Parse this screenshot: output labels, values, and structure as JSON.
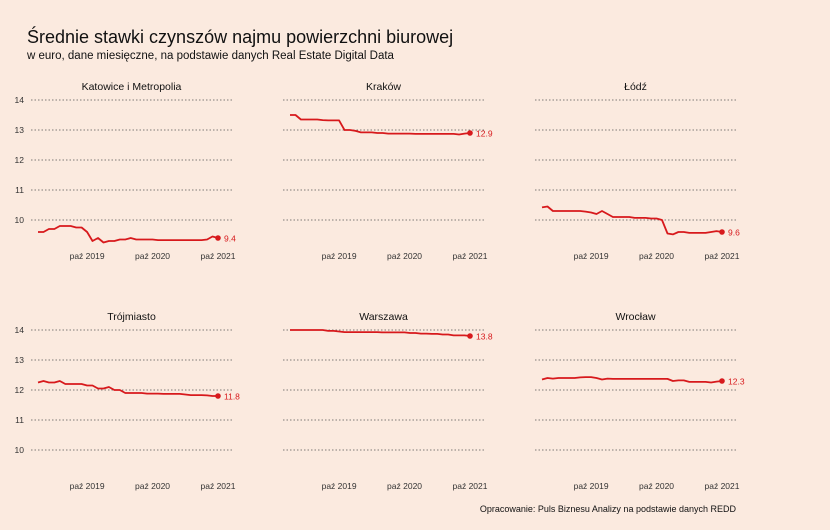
{
  "title": "Średnie stawki czynszów najmu powierzchni biurowej",
  "subtitle": "w euro, dane miesięczne, na podstawie danych Real Estate Digital Data",
  "caption": "Opracowanie: Puls Biznesu Analizy na podstawie danych REDD",
  "colors": {
    "line": "#d7191c",
    "background": "#fbeadf",
    "grid": "#555555",
    "text": "#333333"
  },
  "chart_data": [
    {
      "type": "line",
      "title": "Katowice i Metropolia",
      "x": [
        "2019-01",
        "2019-02",
        "2019-03",
        "2019-04",
        "2019-05",
        "2019-06",
        "2019-07",
        "2019-08",
        "2019-09",
        "2019-10",
        "2019-11",
        "2019-12",
        "2020-01",
        "2020-02",
        "2020-03",
        "2020-04",
        "2020-05",
        "2020-06",
        "2020-07",
        "2020-08",
        "2020-09",
        "2020-10",
        "2020-11",
        "2020-12",
        "2021-01",
        "2021-02",
        "2021-03",
        "2021-04",
        "2021-05",
        "2021-06",
        "2021-07",
        "2021-08",
        "2021-09",
        "2021-10"
      ],
      "values": [
        9.6,
        9.6,
        9.7,
        9.7,
        9.8,
        9.8,
        9.8,
        9.75,
        9.75,
        9.6,
        9.3,
        9.4,
        9.25,
        9.3,
        9.3,
        9.35,
        9.35,
        9.4,
        9.35,
        9.35,
        9.35,
        9.35,
        9.33,
        9.33,
        9.33,
        9.33,
        9.33,
        9.33,
        9.33,
        9.33,
        9.33,
        9.35,
        9.45,
        9.4
      ],
      "last_label": "9.4",
      "ylim": [
        9.2,
        14
      ],
      "yticks": [
        10,
        11,
        12,
        13,
        14
      ],
      "xticks": [
        "paź 2019",
        "paź 2020",
        "paź 2021"
      ],
      "grid": true
    },
    {
      "type": "line",
      "title": "Kraków",
      "x": [
        "2019-01",
        "2019-02",
        "2019-03",
        "2019-04",
        "2019-05",
        "2019-06",
        "2019-07",
        "2019-08",
        "2019-09",
        "2019-10",
        "2019-11",
        "2019-12",
        "2020-01",
        "2020-02",
        "2020-03",
        "2020-04",
        "2020-05",
        "2020-06",
        "2020-07",
        "2020-08",
        "2020-09",
        "2020-10",
        "2020-11",
        "2020-12",
        "2021-01",
        "2021-02",
        "2021-03",
        "2021-04",
        "2021-05",
        "2021-06",
        "2021-07",
        "2021-08",
        "2021-09",
        "2021-10"
      ],
      "values": [
        13.5,
        13.5,
        13.35,
        13.35,
        13.35,
        13.35,
        13.33,
        13.32,
        13.32,
        13.32,
        13.0,
        13.0,
        12.97,
        12.92,
        12.92,
        12.92,
        12.9,
        12.9,
        12.88,
        12.88,
        12.88,
        12.88,
        12.88,
        12.87,
        12.87,
        12.87,
        12.87,
        12.87,
        12.87,
        12.87,
        12.87,
        12.85,
        12.88,
        12.9
      ],
      "last_label": "12.9",
      "ylim": [
        9.2,
        14
      ],
      "yticks": [
        10,
        11,
        12,
        13,
        14
      ],
      "xticks": [
        "paź 2019",
        "paź 2020",
        "paź 2021"
      ],
      "grid": true
    },
    {
      "type": "line",
      "title": "Łódź",
      "x": [
        "2019-01",
        "2019-02",
        "2019-03",
        "2019-04",
        "2019-05",
        "2019-06",
        "2019-07",
        "2019-08",
        "2019-09",
        "2019-10",
        "2019-11",
        "2019-12",
        "2020-01",
        "2020-02",
        "2020-03",
        "2020-04",
        "2020-05",
        "2020-06",
        "2020-07",
        "2020-08",
        "2020-09",
        "2020-10",
        "2020-11",
        "2020-12",
        "2021-01",
        "2021-02",
        "2021-03",
        "2021-04",
        "2021-05",
        "2021-06",
        "2021-07",
        "2021-08",
        "2021-09",
        "2021-10"
      ],
      "values": [
        10.42,
        10.45,
        10.3,
        10.3,
        10.3,
        10.3,
        10.3,
        10.3,
        10.28,
        10.25,
        10.2,
        10.3,
        10.2,
        10.1,
        10.1,
        10.1,
        10.1,
        10.07,
        10.07,
        10.07,
        10.05,
        10.05,
        10.0,
        9.55,
        9.52,
        9.6,
        9.6,
        9.57,
        9.57,
        9.57,
        9.57,
        9.6,
        9.63,
        9.6
      ],
      "last_label": "9.6",
      "ylim": [
        9.2,
        14
      ],
      "yticks": [
        10,
        11,
        12,
        13,
        14
      ],
      "xticks": [
        "paź 2019",
        "paź 2020",
        "paź 2021"
      ],
      "grid": true
    },
    {
      "type": "line",
      "title": "Trójmiasto",
      "x": [
        "2019-01",
        "2019-02",
        "2019-03",
        "2019-04",
        "2019-05",
        "2019-06",
        "2019-07",
        "2019-08",
        "2019-09",
        "2019-10",
        "2019-11",
        "2019-12",
        "2020-01",
        "2020-02",
        "2020-03",
        "2020-04",
        "2020-05",
        "2020-06",
        "2020-07",
        "2020-08",
        "2020-09",
        "2020-10",
        "2020-11",
        "2020-12",
        "2021-01",
        "2021-02",
        "2021-03",
        "2021-04",
        "2021-05",
        "2021-06",
        "2021-07",
        "2021-08",
        "2021-09",
        "2021-10"
      ],
      "values": [
        12.25,
        12.3,
        12.25,
        12.25,
        12.3,
        12.2,
        12.2,
        12.2,
        12.2,
        12.15,
        12.15,
        12.05,
        12.05,
        12.1,
        12.0,
        12.0,
        11.9,
        11.9,
        11.9,
        11.9,
        11.88,
        11.88,
        11.88,
        11.87,
        11.87,
        11.87,
        11.87,
        11.85,
        11.83,
        11.83,
        11.83,
        11.82,
        11.8,
        11.8
      ],
      "last_label": "11.8",
      "ylim": [
        9.6,
        14.4
      ],
      "yticks": [
        10,
        11,
        12,
        13,
        14
      ],
      "xticks": [
        "paź 2019",
        "paź 2020",
        "paź 2021"
      ],
      "grid": true
    },
    {
      "type": "line",
      "title": "Warszawa",
      "x": [
        "2019-01",
        "2019-02",
        "2019-03",
        "2019-04",
        "2019-05",
        "2019-06",
        "2019-07",
        "2019-08",
        "2019-09",
        "2019-10",
        "2019-11",
        "2019-12",
        "2020-01",
        "2020-02",
        "2020-03",
        "2020-04",
        "2020-05",
        "2020-06",
        "2020-07",
        "2020-08",
        "2020-09",
        "2020-10",
        "2020-11",
        "2020-12",
        "2021-01",
        "2021-02",
        "2021-03",
        "2021-04",
        "2021-05",
        "2021-06",
        "2021-07",
        "2021-08",
        "2021-09",
        "2021-10"
      ],
      "values": [
        14.0,
        14.0,
        14.0,
        14.0,
        14.0,
        14.0,
        14.0,
        13.97,
        13.97,
        13.95,
        13.93,
        13.93,
        13.93,
        13.93,
        13.93,
        13.93,
        13.93,
        13.92,
        13.92,
        13.92,
        13.92,
        13.92,
        13.9,
        13.9,
        13.88,
        13.88,
        13.87,
        13.87,
        13.85,
        13.85,
        13.82,
        13.82,
        13.82,
        13.8
      ],
      "last_label": "13.8",
      "ylim": [
        9.6,
        14.4
      ],
      "yticks": [
        10,
        11,
        12,
        13,
        14
      ],
      "xticks": [
        "paź 2019",
        "paź 2020",
        "paź 2021"
      ],
      "grid": true
    },
    {
      "type": "line",
      "title": "Wrocław",
      "x": [
        "2019-01",
        "2019-02",
        "2019-03",
        "2019-04",
        "2019-05",
        "2019-06",
        "2019-07",
        "2019-08",
        "2019-09",
        "2019-10",
        "2019-11",
        "2019-12",
        "2020-01",
        "2020-02",
        "2020-03",
        "2020-04",
        "2020-05",
        "2020-06",
        "2020-07",
        "2020-08",
        "2020-09",
        "2020-10",
        "2020-11",
        "2020-12",
        "2021-01",
        "2021-02",
        "2021-03",
        "2021-04",
        "2021-05",
        "2021-06",
        "2021-07",
        "2021-08",
        "2021-09",
        "2021-10"
      ],
      "values": [
        12.35,
        12.4,
        12.38,
        12.4,
        12.4,
        12.4,
        12.4,
        12.42,
        12.43,
        12.43,
        12.4,
        12.35,
        12.38,
        12.37,
        12.37,
        12.37,
        12.37,
        12.37,
        12.37,
        12.37,
        12.37,
        12.37,
        12.37,
        12.37,
        12.3,
        12.32,
        12.32,
        12.27,
        12.27,
        12.27,
        12.27,
        12.25,
        12.28,
        12.3
      ],
      "last_label": "12.3",
      "ylim": [
        9.6,
        14.4
      ],
      "yticks": [
        10,
        11,
        12,
        13,
        14
      ],
      "xticks": [
        "paź 2019",
        "paź 2020",
        "paź 2021"
      ],
      "grid": true
    }
  ]
}
